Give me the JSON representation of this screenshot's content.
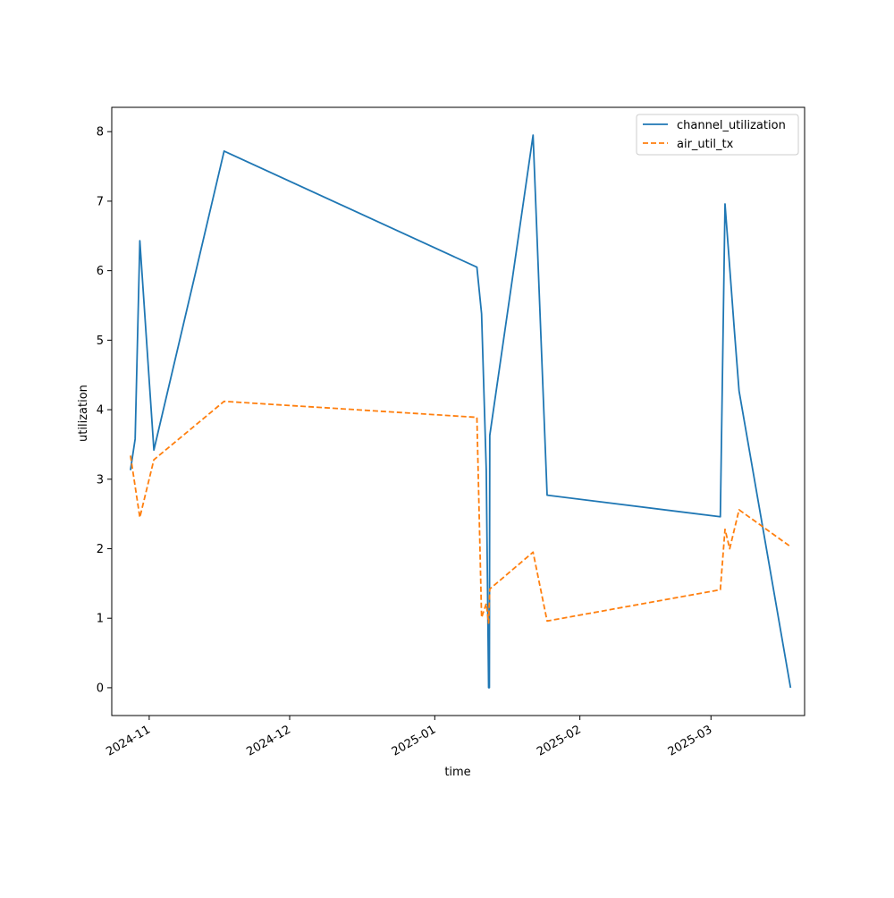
{
  "chart_data": {
    "type": "line",
    "title": "",
    "xlabel": "time",
    "ylabel": "utilization",
    "x_axis_type": "date",
    "xlim": [
      "2024-10-24",
      "2025-03-21"
    ],
    "ylim": [
      -0.4,
      8.35
    ],
    "x_ticks": [
      "2024-11-01",
      "2024-12-01",
      "2025-01-01",
      "2025-02-01",
      "2025-03-01"
    ],
    "x_tick_labels": [
      "2024-11",
      "2024-12",
      "2025-01",
      "2025-02",
      "2025-03"
    ],
    "y_ticks": [
      0,
      1,
      2,
      3,
      4,
      5,
      6,
      7,
      8
    ],
    "y_tick_labels": [
      "0",
      "1",
      "2",
      "3",
      "4",
      "5",
      "6",
      "7",
      "8"
    ],
    "grid": false,
    "legend_position": "top-right",
    "series": [
      {
        "name": "channel_utilization",
        "color": "#1f77b4",
        "dash": "solid",
        "points": [
          {
            "x": "2024-10-28",
            "y": 3.13
          },
          {
            "x": "2024-10-29",
            "y": 3.58
          },
          {
            "x": "2024-10-30",
            "y": 6.43
          },
          {
            "x": "2024-11-02",
            "y": 3.42
          },
          {
            "x": "2024-11-17",
            "y": 7.72
          },
          {
            "x": "2025-01-10",
            "y": 6.05
          },
          {
            "x": "2025-01-11",
            "y": 5.38
          },
          {
            "x": "2025-01-12",
            "y": 3.13
          },
          {
            "x": "2025-01-12T12:00",
            "y": 0.0
          },
          {
            "x": "2025-01-12T14:00",
            "y": 0.98
          },
          {
            "x": "2025-01-12T16:00",
            "y": 0.0
          },
          {
            "x": "2025-01-12T18:00",
            "y": 3.63
          },
          {
            "x": "2025-01-22",
            "y": 7.95
          },
          {
            "x": "2025-01-25",
            "y": 2.77
          },
          {
            "x": "2025-03-03",
            "y": 2.46
          },
          {
            "x": "2025-03-04",
            "y": 6.96
          },
          {
            "x": "2025-03-06",
            "y": 5.14
          },
          {
            "x": "2025-03-07",
            "y": 4.27
          },
          {
            "x": "2025-03-18",
            "y": 0.0
          }
        ]
      },
      {
        "name": "air_util_tx",
        "color": "#ff7f0e",
        "dash": "dashed",
        "points": [
          {
            "x": "2024-10-28",
            "y": 3.34
          },
          {
            "x": "2024-10-30",
            "y": 2.45
          },
          {
            "x": "2024-11-02",
            "y": 3.28
          },
          {
            "x": "2024-11-17",
            "y": 4.12
          },
          {
            "x": "2025-01-10",
            "y": 3.89
          },
          {
            "x": "2025-01-11",
            "y": 1.01
          },
          {
            "x": "2025-01-12",
            "y": 1.21
          },
          {
            "x": "2025-01-12T12:00",
            "y": 0.93
          },
          {
            "x": "2025-01-12T18:00",
            "y": 1.42
          },
          {
            "x": "2025-01-22",
            "y": 1.95
          },
          {
            "x": "2025-01-25",
            "y": 0.96
          },
          {
            "x": "2025-03-03",
            "y": 1.41
          },
          {
            "x": "2025-03-04",
            "y": 2.28
          },
          {
            "x": "2025-03-05",
            "y": 2.0
          },
          {
            "x": "2025-03-07",
            "y": 2.56
          },
          {
            "x": "2025-03-18",
            "y": 2.03
          }
        ]
      }
    ]
  }
}
